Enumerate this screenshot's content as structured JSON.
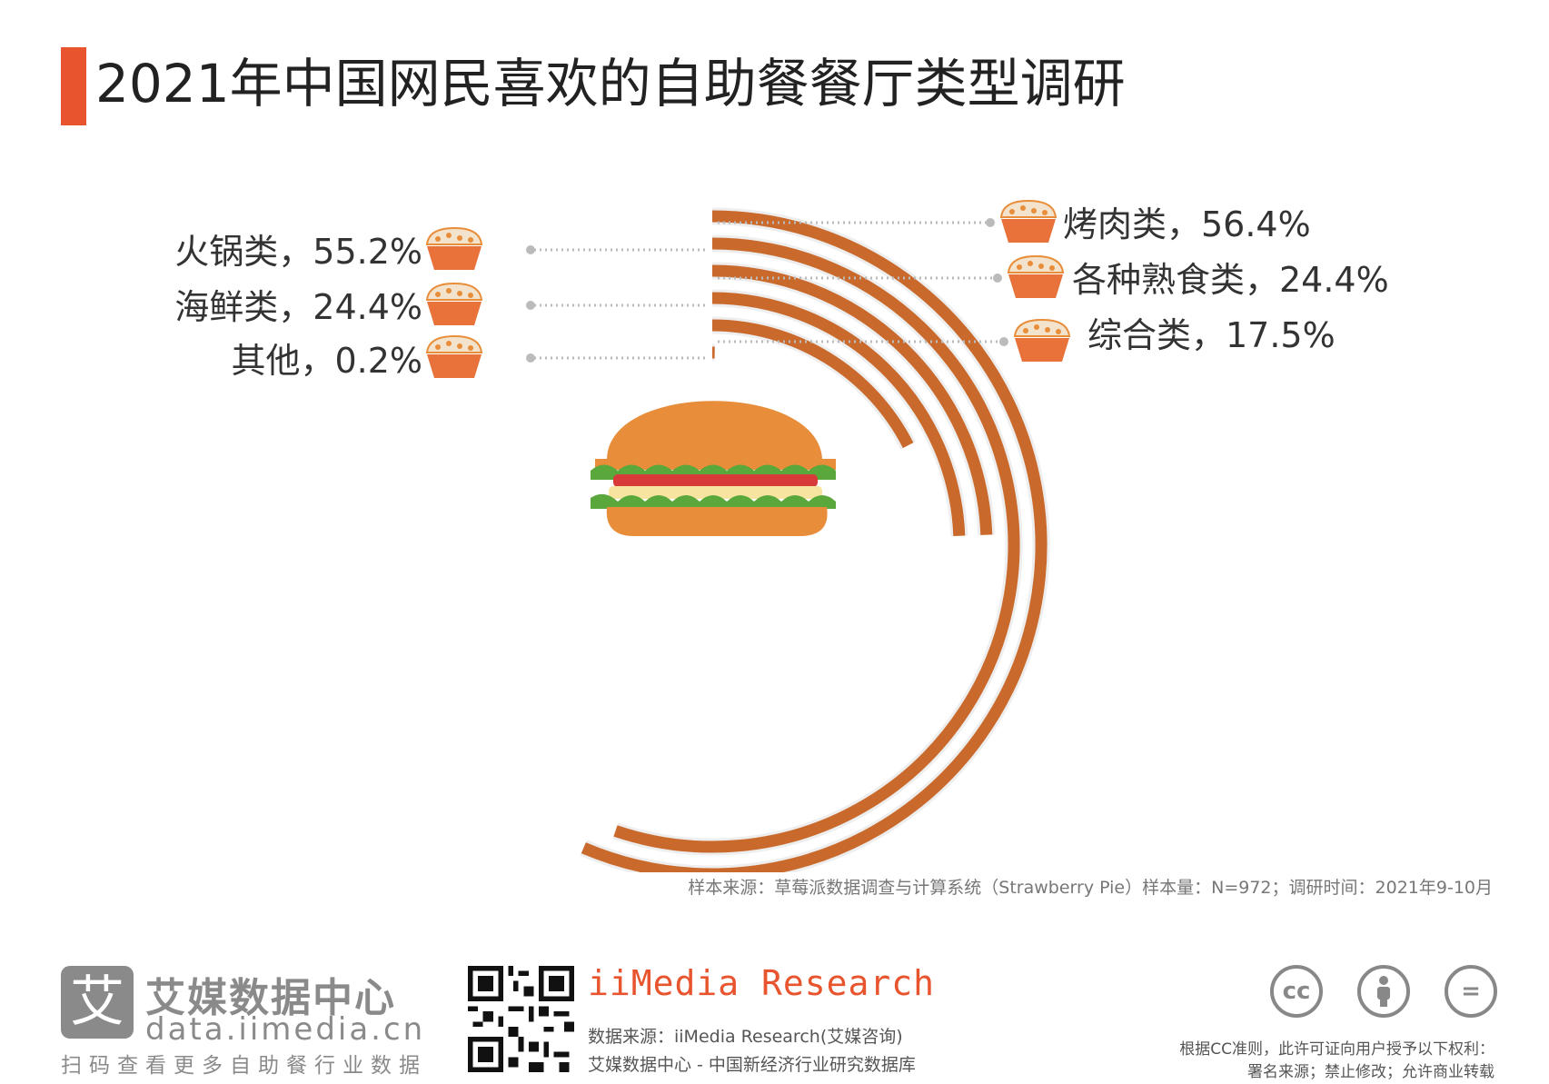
{
  "header": {
    "title": "2021年中国网民喜欢的自助餐餐厅类型调研",
    "accent_color": "#e8542d"
  },
  "chart_data": {
    "type": "radial-bar",
    "title": "2021年中国网民喜欢的自助餐餐厅类型调研",
    "unit": "%",
    "series_color": "#c96a2c",
    "categories": [
      "烤肉类",
      "火锅类",
      "海鲜类",
      "各种熟食类",
      "综合类",
      "其他"
    ],
    "values": [
      56.4,
      55.2,
      24.4,
      24.4,
      17.5,
      0.2
    ],
    "labels": [
      "烤肉类，56.4%",
      "火锅类，55.2%",
      "海鲜类，24.4%",
      "各种熟食类，24.4%",
      "综合类，17.5%",
      "其他，0.2%"
    ],
    "center_icon": "hamburger-icon",
    "label_icon": "cupcake-icon"
  },
  "footer": {
    "source_note": "样本来源：草莓派数据调查与计算系统（Strawberry Pie）样本量：N=972；调研时间：2021年9-10月",
    "logo_glyph": "艾",
    "logo_cn": "艾媒数据中心",
    "logo_url": "data.iimedia.cn",
    "logo_scan": "扫码查看更多自助餐行业数据",
    "brand": "iiMedia Research",
    "brand_source": "数据来源：iiMedia Research(艾媒咨询)",
    "brand_db": "艾媒数据中心 - 中国新经济行业研究数据库",
    "cc_icons": [
      "cc-icon",
      "attribution-icon",
      "no-derivatives-icon"
    ],
    "cc_line1": "根据CC准则，此许可证向用户授予以下权利：",
    "cc_line2": "署名来源；禁止修改；允许商业转载"
  }
}
